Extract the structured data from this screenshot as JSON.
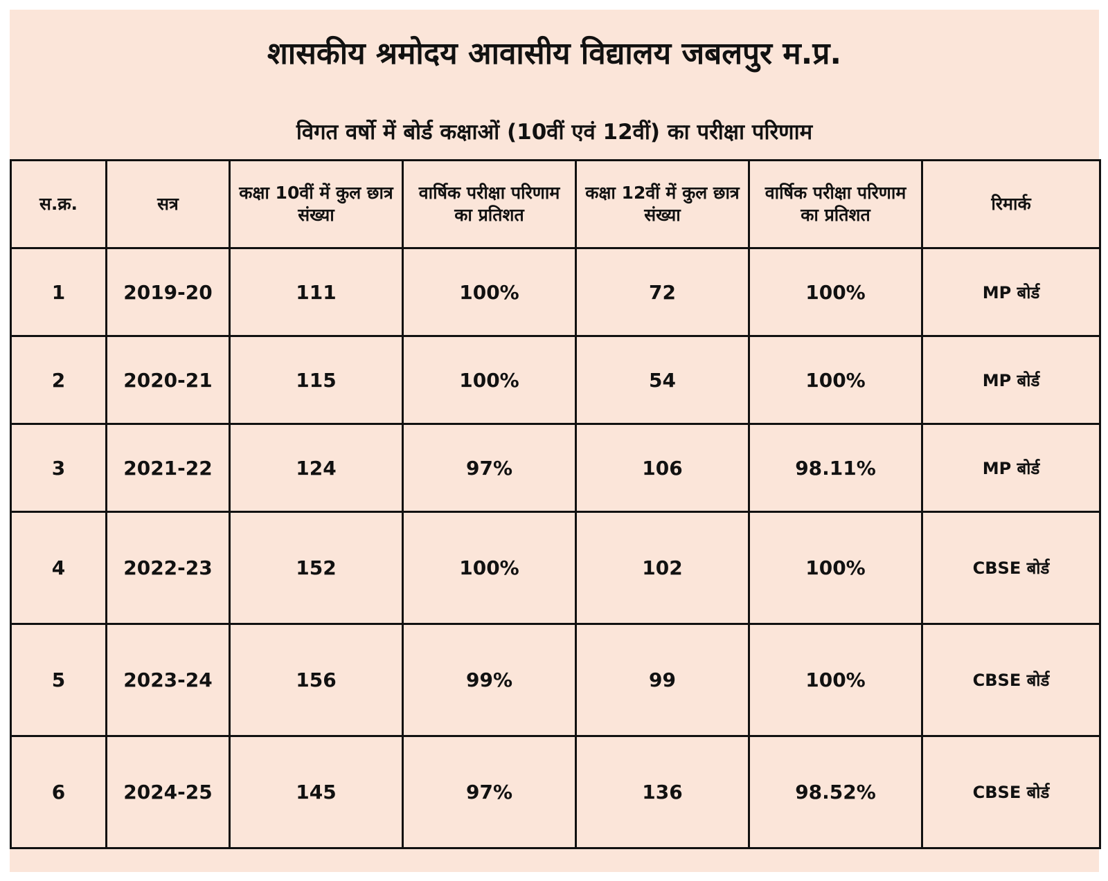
{
  "header": {
    "title": "शासकीय श्रमोदय आवासीय विद्यालय जबलपुर म.प्र.",
    "subtitle": "विगत वर्षो में बोर्ड कक्षाओं (10वीं एवं 12वीं) का परीक्षा परिणाम"
  },
  "table": {
    "columns": [
      "स.क्र.",
      "सत्र",
      "कक्षा 10वीं में कुल छात्र संख्या",
      "वार्षिक परीक्षा परिणाम का प्रतिशत",
      "कक्षा 12वीं में कुल छात्र संख्या",
      "वार्षिक परीक्षा परिणाम का प्रतिशत",
      "रिमार्क"
    ],
    "rows": [
      [
        "1",
        "2019-20",
        "111",
        "100%",
        "72",
        "100%",
        "MP बोर्ड"
      ],
      [
        "2",
        "2020-21",
        "115",
        "100%",
        "54",
        "100%",
        "MP बोर्ड"
      ],
      [
        "3",
        "2021-22",
        "124",
        "97%",
        "106",
        "98.11%",
        "MP बोर्ड"
      ],
      [
        "4",
        "2022-23",
        "152",
        "100%",
        "102",
        "100%",
        "CBSE बोर्ड"
      ],
      [
        "5",
        "2023-24",
        "156",
        "99%",
        "99",
        "100%",
        "CBSE बोर्ड"
      ],
      [
        "6",
        "2024-25",
        "145",
        "97%",
        "136",
        "98.52%",
        "CBSE बोर्ड"
      ]
    ]
  },
  "colors": {
    "background": "#fbe5d9",
    "border": "#111111",
    "text": "#111111"
  }
}
